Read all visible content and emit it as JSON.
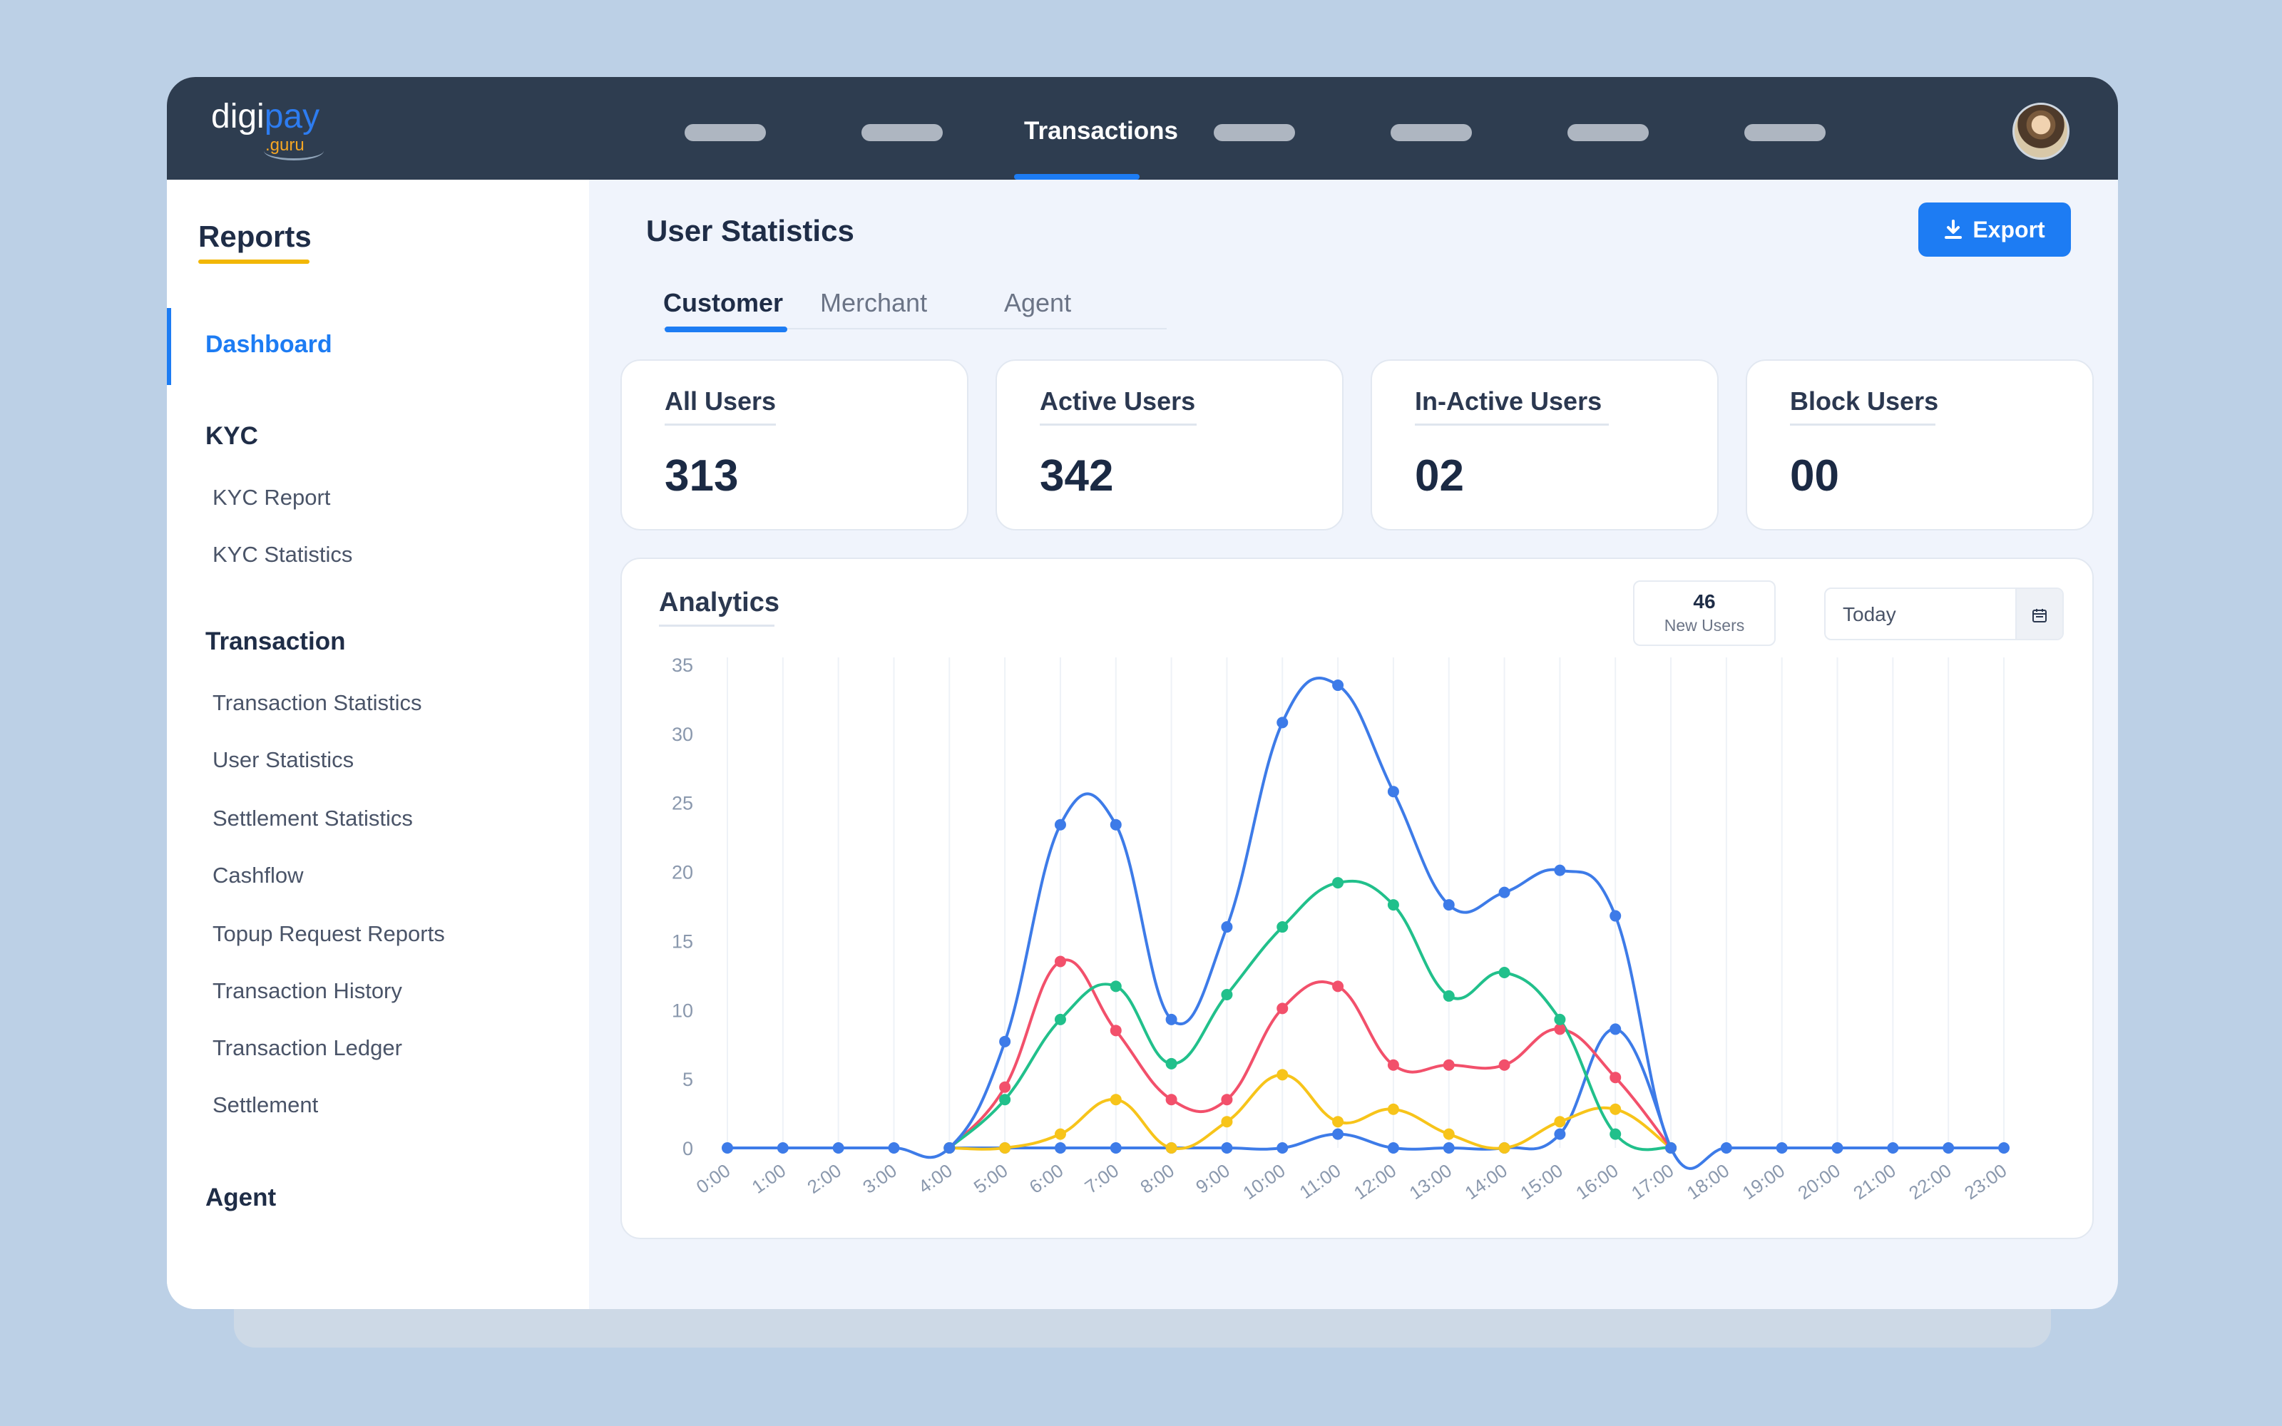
{
  "app": {
    "logo_main": "digi",
    "logo_accent": "pay",
    "logo_sub": ".guru"
  },
  "topnav": {
    "active_label": "Transactions"
  },
  "sidebar": {
    "title": "Reports",
    "dashboard": "Dashboard",
    "sections": [
      {
        "label": "KYC",
        "items": [
          "KYC Report",
          "KYC Statistics"
        ]
      },
      {
        "label": "Transaction",
        "items": [
          "Transaction Statistics",
          "User Statistics",
          "Settlement Statistics",
          "Cashflow",
          "Topup Request Reports",
          "Transaction History",
          "Transaction Ledger",
          "Settlement"
        ]
      },
      {
        "label": "Agent",
        "items": []
      }
    ]
  },
  "main": {
    "title": "User Statistics",
    "export_label": "Export",
    "tabs": [
      "Customer",
      "Merchant",
      "Agent"
    ],
    "active_tab": 0,
    "stats": [
      {
        "label": "All Users",
        "value": "313"
      },
      {
        "label": "Active Users",
        "value": "342"
      },
      {
        "label": "In-Active Users",
        "value": "02"
      },
      {
        "label": "Block Users",
        "value": "00"
      }
    ]
  },
  "analytics": {
    "title": "Analytics",
    "new_users_value": "46",
    "new_users_label": "New Users",
    "date_value": "Today"
  },
  "chart_data": {
    "type": "line",
    "x": [
      "0:00",
      "1:00",
      "2:00",
      "3:00",
      "4:00",
      "5:00",
      "6:00",
      "7:00",
      "8:00",
      "9:00",
      "10:00",
      "11:00",
      "12:00",
      "13:00",
      "14:00",
      "15:00",
      "16:00",
      "17:00",
      "18:00",
      "19:00",
      "20:00",
      "21:00",
      "22:00",
      "23:00"
    ],
    "ylim": [
      0,
      35
    ],
    "yticks": [
      0,
      5,
      10,
      15,
      20,
      25,
      30,
      35
    ],
    "grid": "vertical",
    "series": [
      {
        "color": "#3d7be8",
        "values": [
          0,
          0,
          0,
          0,
          0,
          7.7,
          23.4,
          23.4,
          9.3,
          16,
          30.8,
          33.5,
          25.8,
          17.6,
          18.5,
          20.1,
          16.8,
          0,
          0,
          0,
          0,
          0,
          0,
          0
        ]
      },
      {
        "color": "#21c08b",
        "values": [
          null,
          null,
          null,
          null,
          0,
          3.5,
          9.3,
          11.7,
          6.1,
          11.1,
          16,
          19.2,
          17.6,
          11,
          12.7,
          9.3,
          1,
          0,
          null,
          null,
          null,
          null,
          null,
          null
        ]
      },
      {
        "color": "#f2506b",
        "values": [
          null,
          null,
          null,
          null,
          0,
          4.4,
          13.5,
          8.5,
          3.5,
          3.5,
          10.1,
          11.7,
          6,
          6,
          6,
          8.6,
          5.1,
          0,
          null,
          null,
          null,
          null,
          null,
          null
        ]
      },
      {
        "color": "#f7c41a",
        "values": [
          null,
          null,
          null,
          null,
          0,
          0,
          1,
          3.5,
          0,
          1.9,
          5.3,
          1.9,
          2.8,
          1,
          0,
          1.9,
          2.8,
          0,
          null,
          null,
          null,
          null,
          null,
          null
        ]
      },
      {
        "color": "#3d7be8",
        "values": [
          null,
          null,
          null,
          null,
          0,
          0,
          0,
          0,
          0,
          0,
          0,
          1,
          0,
          0,
          0,
          1,
          8.6,
          0,
          null,
          null,
          null,
          null,
          null,
          null
        ]
      }
    ]
  }
}
